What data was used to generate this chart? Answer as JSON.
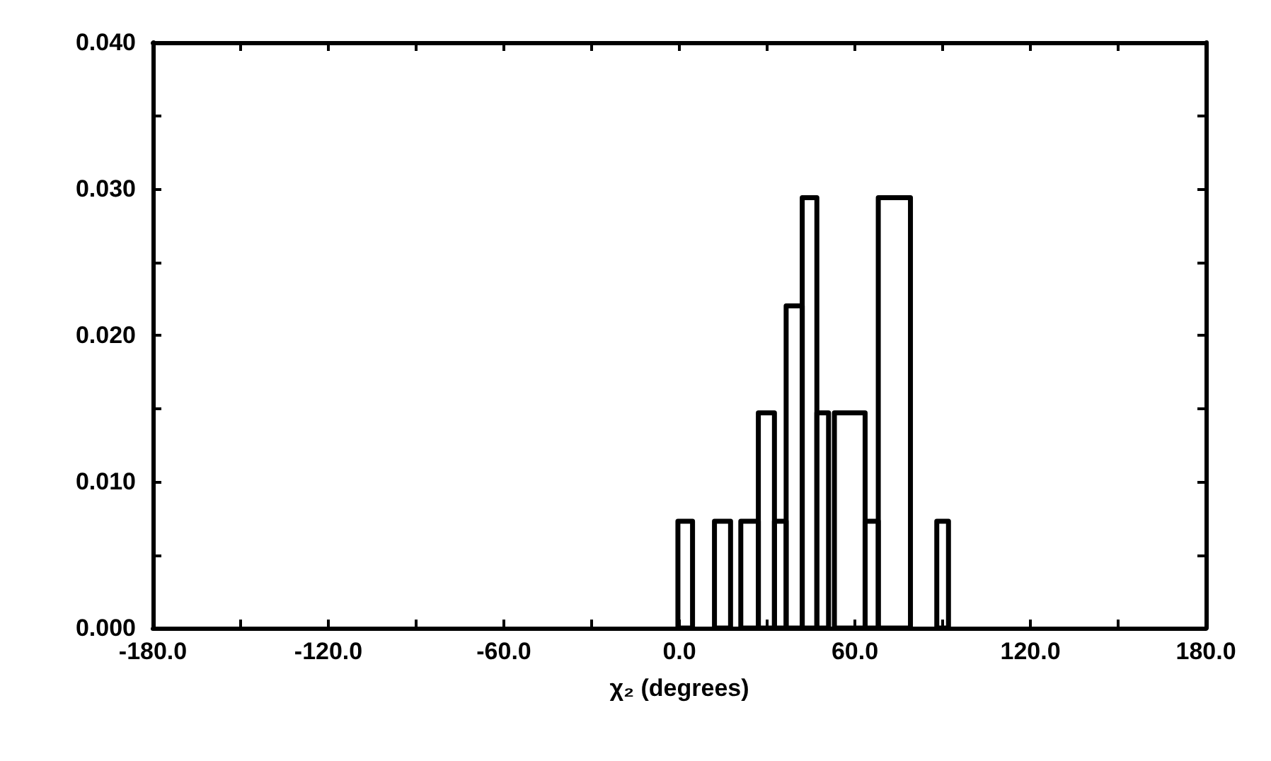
{
  "chart_data": {
    "type": "histogram",
    "xlabel": "χ₂ (degrees)",
    "bins": [
      -0.5,
      4.5,
      12,
      17.5,
      21,
      27,
      32.5,
      36.5,
      42,
      47,
      51,
      53,
      63.5,
      68,
      79,
      88,
      92
    ],
    "values": [
      0.0073,
      0,
      0.0073,
      0,
      0.0073,
      0.0147,
      0.0073,
      0.022,
      0.0294,
      0.0147,
      0,
      0.0147,
      0.0073,
      0.0294,
      0,
      0.0073
    ],
    "color": "#000000",
    "xlim": [
      -180,
      180
    ],
    "xticks": [
      {
        "value": -180,
        "label": "-180.0"
      },
      {
        "value": -150,
        "label": null
      },
      {
        "value": -120,
        "label": "-120.0"
      },
      {
        "value": -90,
        "label": null
      },
      {
        "value": -60,
        "label": "-60.0"
      },
      {
        "value": -30,
        "label": null
      },
      {
        "value": 0,
        "label": "0.0"
      },
      {
        "value": 30,
        "label": null
      },
      {
        "value": 60,
        "label": "60.0"
      },
      {
        "value": 90,
        "label": null
      },
      {
        "value": 120,
        "label": "120.0"
      },
      {
        "value": 150,
        "label": null
      },
      {
        "value": 180,
        "label": "180.0"
      }
    ],
    "ylim": [
      0,
      0.04
    ],
    "yticks": [
      {
        "value": 0,
        "label": "0.000"
      },
      {
        "value": 0.005,
        "label": null
      },
      {
        "value": 0.01,
        "label": "0.010"
      },
      {
        "value": 0.015,
        "label": null
      },
      {
        "value": 0.02,
        "label": "0.020"
      },
      {
        "value": 0.025,
        "label": null
      },
      {
        "value": 0.03,
        "label": "0.030"
      },
      {
        "value": 0.035,
        "label": null
      },
      {
        "value": 0.04,
        "label": "0.040"
      }
    ],
    "grid": false
  }
}
